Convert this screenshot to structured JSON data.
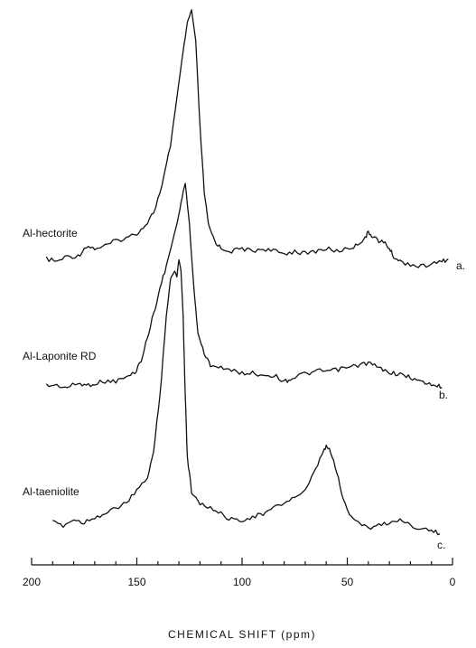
{
  "chart_data": {
    "type": "line",
    "title": "",
    "xlabel": "CHEMICAL SHIFT (ppm)",
    "ylabel": "",
    "xlim": [
      200,
      0
    ],
    "x_reversed": true,
    "xticks": [
      200,
      150,
      100,
      50,
      0
    ],
    "grid": false,
    "legend": "none",
    "series": [
      {
        "name": "Al-hectorite",
        "tag": "a.",
        "points": [
          [
            193,
            0.04
          ],
          [
            188,
            0.03
          ],
          [
            183,
            0.05
          ],
          [
            178,
            0.05
          ],
          [
            174,
            0.09
          ],
          [
            170,
            0.08
          ],
          [
            165,
            0.09
          ],
          [
            160,
            0.11
          ],
          [
            155,
            0.12
          ],
          [
            150,
            0.14
          ],
          [
            146,
            0.17
          ],
          [
            142,
            0.22
          ],
          [
            138,
            0.32
          ],
          [
            134,
            0.48
          ],
          [
            131,
            0.66
          ],
          [
            128,
            0.84
          ],
          [
            126,
            0.95
          ],
          [
            124,
            1.0
          ],
          [
            122,
            0.88
          ],
          [
            120,
            0.55
          ],
          [
            118,
            0.3
          ],
          [
            116,
            0.17
          ],
          [
            113,
            0.11
          ],
          [
            110,
            0.08
          ],
          [
            105,
            0.07
          ],
          [
            100,
            0.08
          ],
          [
            95,
            0.07
          ],
          [
            90,
            0.08
          ],
          [
            85,
            0.07
          ],
          [
            80,
            0.06
          ],
          [
            75,
            0.07
          ],
          [
            70,
            0.06
          ],
          [
            65,
            0.07
          ],
          [
            60,
            0.08
          ],
          [
            55,
            0.07
          ],
          [
            50,
            0.08
          ],
          [
            46,
            0.09
          ],
          [
            42,
            0.12
          ],
          [
            40,
            0.14
          ],
          [
            38,
            0.13
          ],
          [
            35,
            0.11
          ],
          [
            32,
            0.1
          ],
          [
            30,
            0.08
          ],
          [
            28,
            0.05
          ],
          [
            25,
            0.03
          ],
          [
            20,
            0.02
          ],
          [
            15,
            0.01
          ],
          [
            10,
            0.02
          ],
          [
            5,
            0.03
          ],
          [
            2,
            0.04
          ]
        ]
      },
      {
        "name": "Al-Laponite RD",
        "tag": "b.",
        "points": [
          [
            193,
            0.02
          ],
          [
            188,
            0.02
          ],
          [
            183,
            0.01
          ],
          [
            178,
            0.03
          ],
          [
            174,
            0.02
          ],
          [
            170,
            0.03
          ],
          [
            165,
            0.04
          ],
          [
            160,
            0.04
          ],
          [
            155,
            0.06
          ],
          [
            151,
            0.08
          ],
          [
            148,
            0.14
          ],
          [
            145,
            0.25
          ],
          [
            142,
            0.37
          ],
          [
            139,
            0.49
          ],
          [
            136,
            0.6
          ],
          [
            133,
            0.72
          ],
          [
            130,
            0.85
          ],
          [
            128,
            0.96
          ],
          [
            127,
            1.0
          ],
          [
            125,
            0.8
          ],
          [
            123,
            0.5
          ],
          [
            121,
            0.28
          ],
          [
            118,
            0.17
          ],
          [
            115,
            0.12
          ],
          [
            110,
            0.11
          ],
          [
            105,
            0.09
          ],
          [
            100,
            0.08
          ],
          [
            95,
            0.08
          ],
          [
            90,
            0.07
          ],
          [
            85,
            0.07
          ],
          [
            80,
            0.04
          ],
          [
            77,
            0.05
          ],
          [
            73,
            0.07
          ],
          [
            68,
            0.08
          ],
          [
            63,
            0.09
          ],
          [
            58,
            0.09
          ],
          [
            53,
            0.1
          ],
          [
            48,
            0.11
          ],
          [
            44,
            0.12
          ],
          [
            40,
            0.13
          ],
          [
            36,
            0.11
          ],
          [
            32,
            0.09
          ],
          [
            28,
            0.08
          ],
          [
            24,
            0.07
          ],
          [
            20,
            0.06
          ],
          [
            16,
            0.04
          ],
          [
            12,
            0.03
          ],
          [
            8,
            0.02
          ],
          [
            5,
            0.01
          ]
        ]
      },
      {
        "name": "Al-taeniolite",
        "tag": "c.",
        "points": [
          [
            190,
            0.07
          ],
          [
            185,
            0.06
          ],
          [
            180,
            0.08
          ],
          [
            175,
            0.07
          ],
          [
            170,
            0.09
          ],
          [
            165,
            0.1
          ],
          [
            160,
            0.12
          ],
          [
            155,
            0.14
          ],
          [
            150,
            0.18
          ],
          [
            145,
            0.23
          ],
          [
            142,
            0.32
          ],
          [
            139,
            0.52
          ],
          [
            136,
            0.8
          ],
          [
            134,
            0.93
          ],
          [
            132,
            0.96
          ],
          [
            131,
            0.94
          ],
          [
            130,
            1.0
          ],
          [
            129,
            0.96
          ],
          [
            128,
            0.8
          ],
          [
            127,
            0.52
          ],
          [
            126,
            0.3
          ],
          [
            124,
            0.18
          ],
          [
            120,
            0.14
          ],
          [
            115,
            0.12
          ],
          [
            110,
            0.1
          ],
          [
            105,
            0.08
          ],
          [
            100,
            0.08
          ],
          [
            95,
            0.09
          ],
          [
            90,
            0.1
          ],
          [
            85,
            0.12
          ],
          [
            80,
            0.14
          ],
          [
            75,
            0.16
          ],
          [
            70,
            0.18
          ],
          [
            66,
            0.24
          ],
          [
            62,
            0.31
          ],
          [
            60,
            0.34
          ],
          [
            58,
            0.32
          ],
          [
            55,
            0.25
          ],
          [
            52,
            0.15
          ],
          [
            48,
            0.09
          ],
          [
            44,
            0.07
          ],
          [
            40,
            0.05
          ],
          [
            35,
            0.06
          ],
          [
            30,
            0.07
          ],
          [
            25,
            0.08
          ],
          [
            20,
            0.06
          ],
          [
            15,
            0.05
          ],
          [
            10,
            0.04
          ],
          [
            6,
            0.03
          ]
        ]
      }
    ]
  }
}
